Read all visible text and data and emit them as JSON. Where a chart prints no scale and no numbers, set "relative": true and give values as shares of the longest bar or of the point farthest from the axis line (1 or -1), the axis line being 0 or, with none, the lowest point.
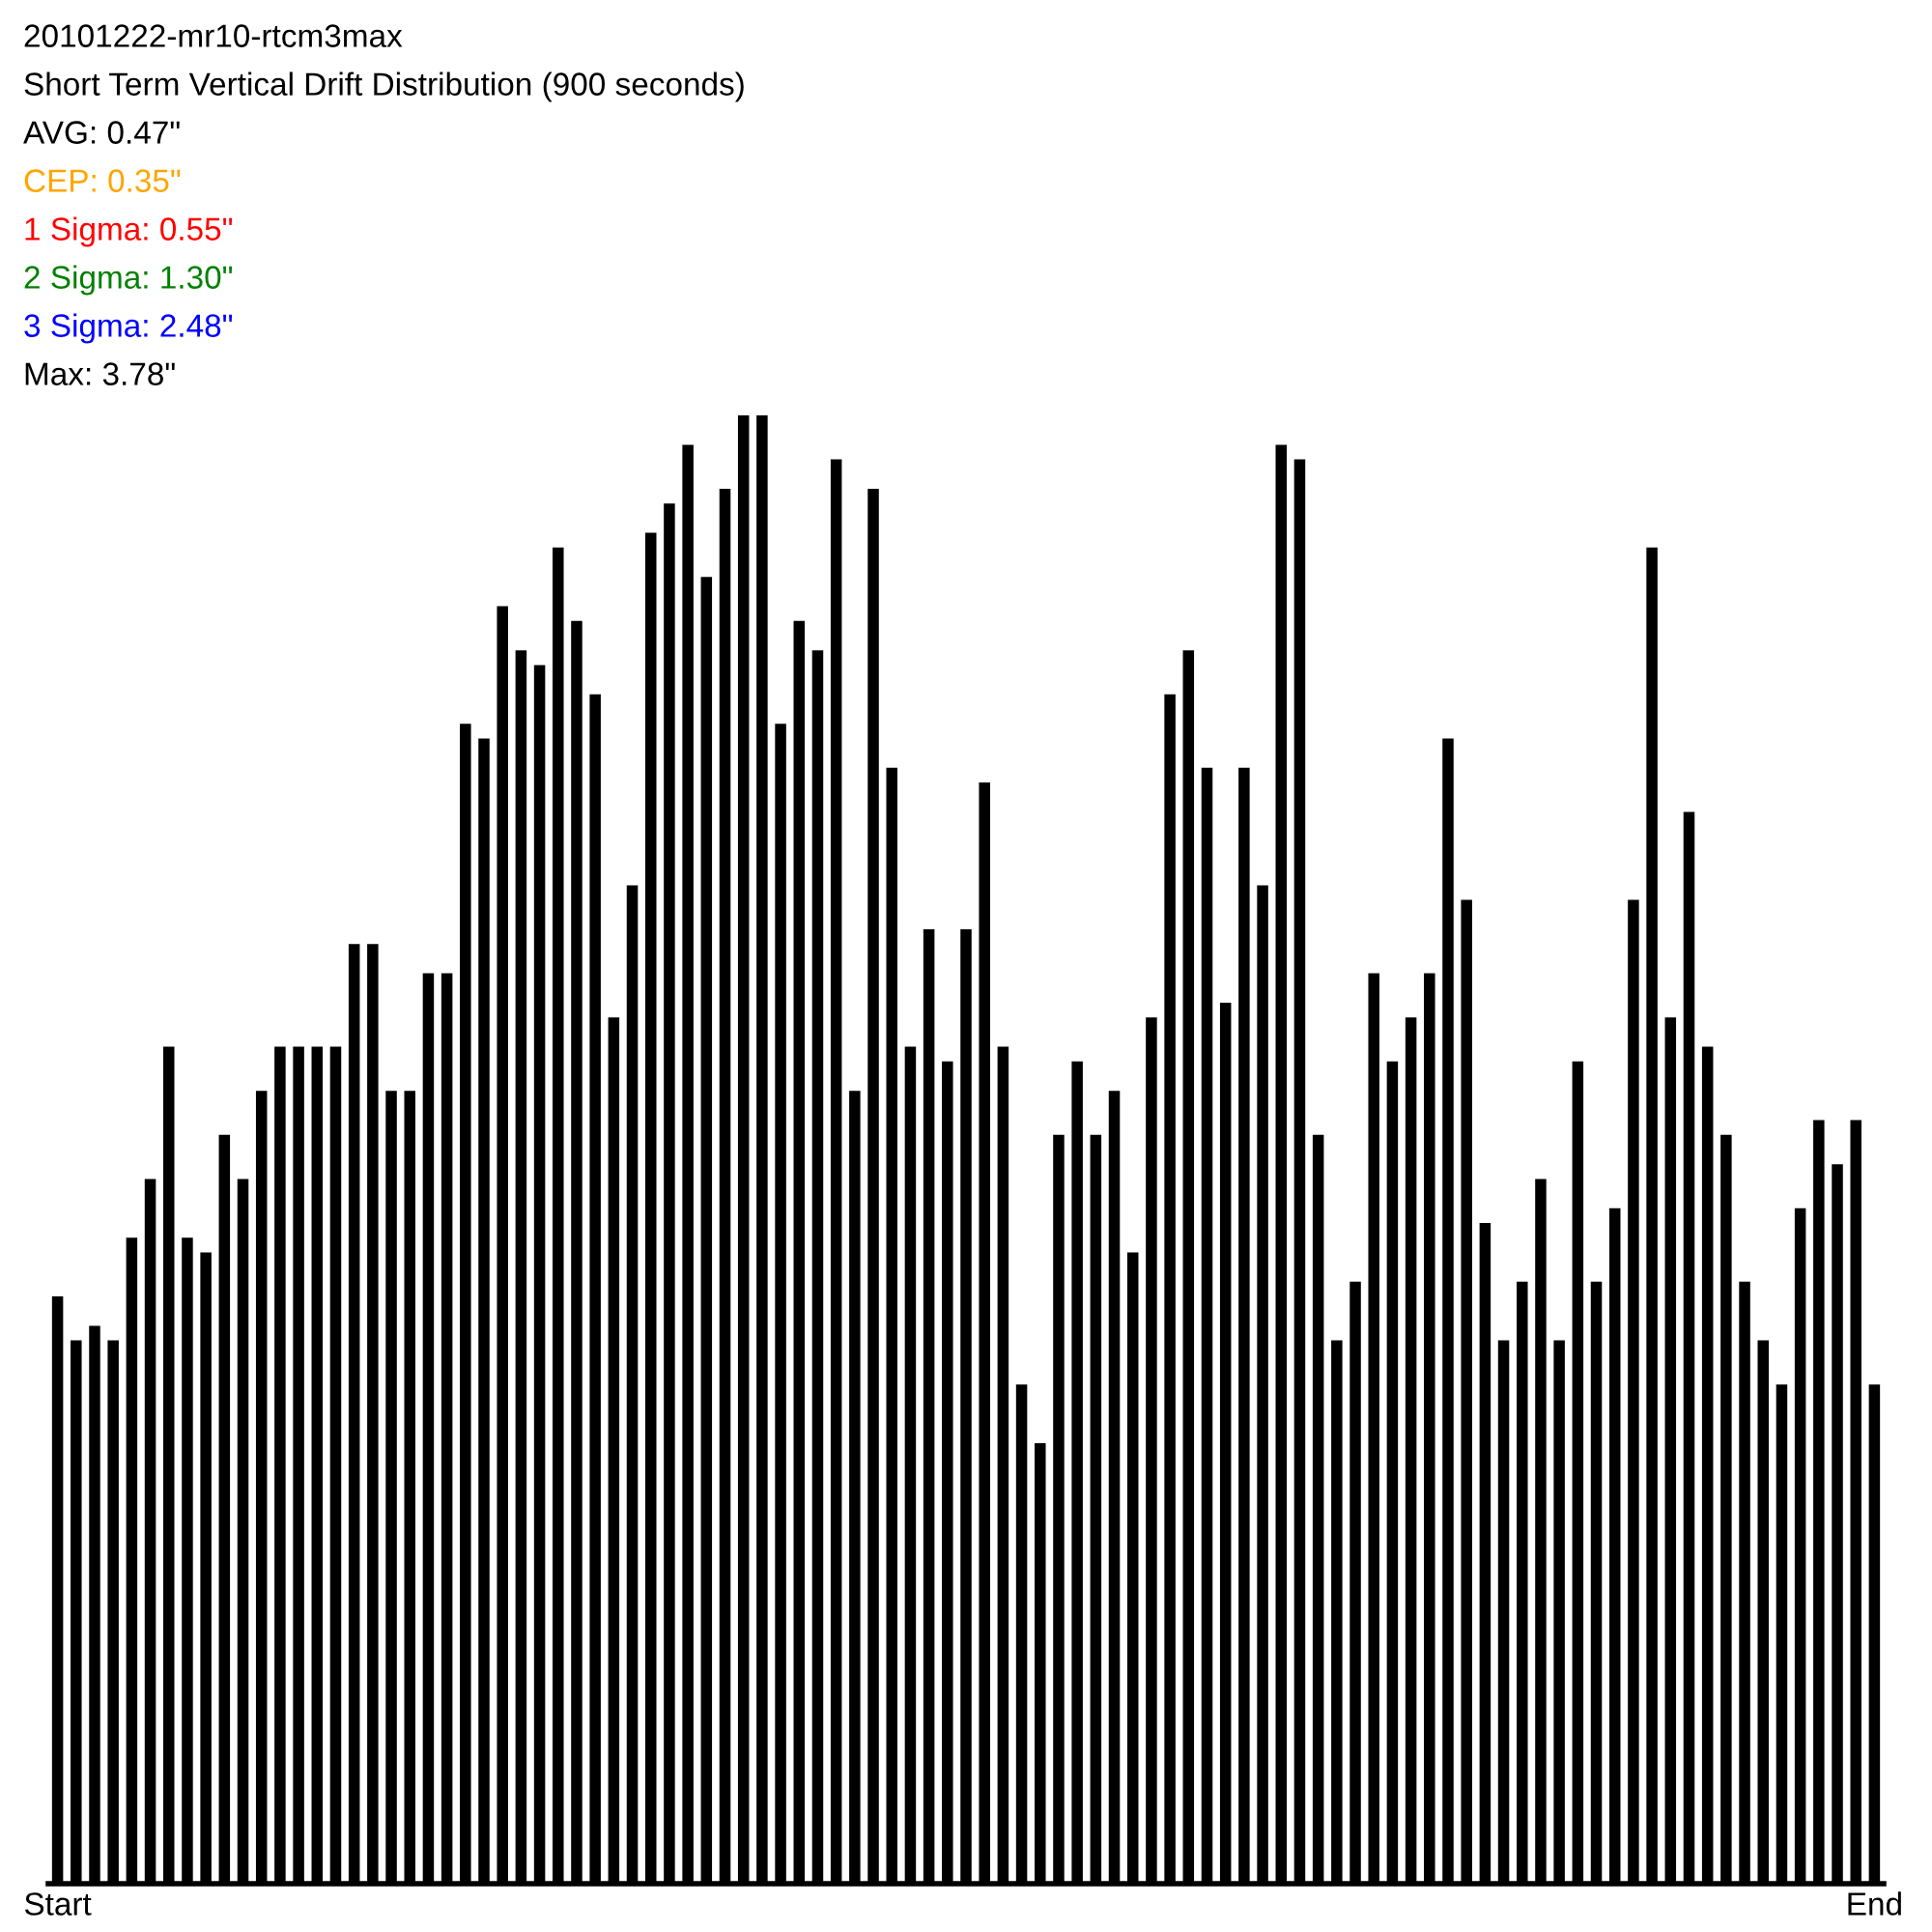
{
  "chart_data": {
    "type": "bar",
    "title": "20101222-mr10-rtcm3max",
    "subtitle": "Short Term Vertical Drift Distribution (900 seconds)",
    "annotations": [
      "AVG: 0.47\"",
      "CEP: 0.35\"",
      "1 Sigma: 0.55\"",
      "2 Sigma: 1.30\"",
      "3 Sigma: 2.48\"",
      "Max: 3.78\""
    ],
    "relative": true,
    "color": "#000000",
    "categories": [
      "Start",
      null,
      null,
      null,
      null,
      null,
      null,
      null,
      null,
      null,
      null,
      null,
      null,
      null,
      null,
      null,
      null,
      null,
      null,
      null,
      null,
      null,
      null,
      null,
      null,
      null,
      null,
      null,
      null,
      null,
      null,
      null,
      null,
      null,
      null,
      null,
      null,
      null,
      null,
      null,
      null,
      null,
      null,
      null,
      null,
      null,
      null,
      null,
      null,
      null,
      null,
      null,
      null,
      null,
      null,
      null,
      null,
      null,
      null,
      null,
      null,
      null,
      null,
      null,
      null,
      null,
      null,
      null,
      null,
      null,
      null,
      null,
      null,
      null,
      null,
      null,
      null,
      null,
      null,
      null,
      null,
      null,
      null,
      null,
      null,
      null,
      null,
      null,
      null,
      null,
      null,
      null,
      null,
      null,
      null,
      null,
      null,
      null,
      "End"
    ],
    "values": [
      0.4,
      0.37,
      0.38,
      0.37,
      0.44,
      0.48,
      0.57,
      0.44,
      0.43,
      0.51,
      0.48,
      0.54,
      0.57,
      0.57,
      0.57,
      0.57,
      0.64,
      0.64,
      0.54,
      0.54,
      0.62,
      0.62,
      0.79,
      0.78,
      0.87,
      0.84,
      0.83,
      0.91,
      0.86,
      0.81,
      0.59,
      0.68,
      0.92,
      0.94,
      0.98,
      0.89,
      0.95,
      1,
      1,
      0.79,
      0.86,
      0.84,
      0.97,
      0.54,
      0.95,
      0.76,
      0.57,
      0.65,
      0.56,
      0.65,
      0.75,
      0.57,
      0.34,
      0.3,
      0.51,
      0.56,
      0.51,
      0.54,
      0.43,
      0.59,
      0.81,
      0.84,
      0.76,
      0.6,
      0.76,
      0.68,
      0.98,
      0.97,
      0.51,
      0.37,
      0.41,
      0.62,
      0.56,
      0.59,
      0.62,
      0.78,
      0.67,
      0.45,
      0.37,
      0.41,
      0.48,
      0.37,
      0.56,
      0.41,
      0.46,
      0.67,
      0.91,
      0.59,
      0.73,
      0.57,
      0.51,
      0.41,
      0.37,
      0.34,
      0.46,
      0.52,
      0.49,
      0.52,
      0.34
    ]
  }
}
